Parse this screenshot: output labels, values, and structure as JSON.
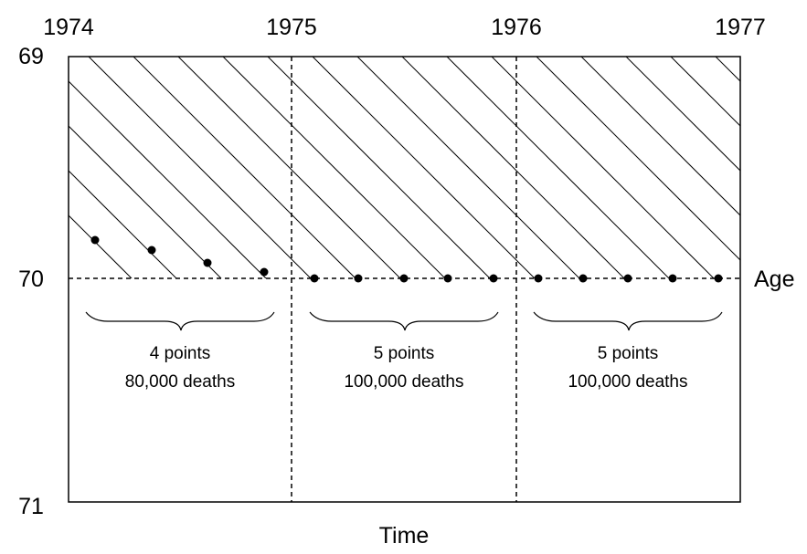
{
  "years": [
    "1974",
    "1975",
    "1976",
    "1977"
  ],
  "ages": [
    "69",
    "70",
    "71"
  ],
  "x_axis_label": "Time",
  "y_axis_label": "Age",
  "groups": [
    {
      "line1": "4 points",
      "line2": "80,000 deaths"
    },
    {
      "line1": "5 points",
      "line2": "100,000 deaths"
    },
    {
      "line1": "5 points",
      "line2": "100,000 deaths"
    }
  ]
}
